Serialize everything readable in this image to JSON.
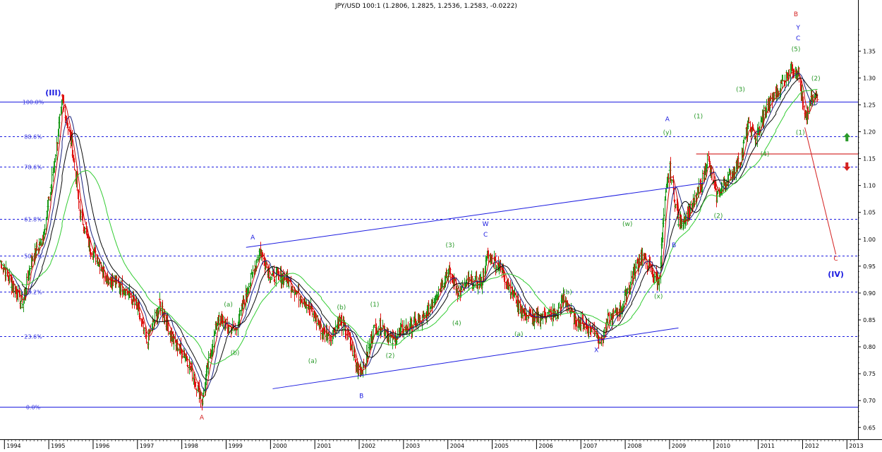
{
  "chart_data": {
    "type": "line",
    "subtype": "ohlc-bars-with-moving-averages",
    "title": "JPY/USD 100:1 (1.2806, 1.2825, 1.2536, 1.2583, -0.0222)",
    "x_axis": {
      "years": [
        "1994",
        "1995",
        "1996",
        "1997",
        "1998",
        "1999",
        "2000",
        "2001",
        "2002",
        "2003",
        "2004",
        "2005",
        "2006",
        "2007",
        "2008",
        "2009",
        "2010",
        "2011",
        "2012",
        "2013"
      ],
      "range": [
        1993.9,
        2013.25
      ]
    },
    "y_axis": {
      "position": "right",
      "ticks": [
        "0.65",
        "0.70",
        "0.75",
        "0.80",
        "0.85",
        "0.90",
        "0.95",
        "1.00",
        "1.05",
        "1.10",
        "1.15",
        "1.20",
        "1.25",
        "1.30",
        "1.35"
      ],
      "range": [
        0.628,
        1.445
      ]
    },
    "fib_levels": [
      {
        "label": "100.0%",
        "value": 1.2565,
        "style": "solid"
      },
      {
        "label": "88.6%",
        "value": 1.1918,
        "style": "dashed"
      },
      {
        "label": "78.6%",
        "value": 1.1348,
        "style": "dashed"
      },
      {
        "label": "61.8%",
        "value": 1.0378,
        "style": "dashed"
      },
      {
        "label": "50.0%",
        "value": 0.97,
        "style": "dashed"
      },
      {
        "label": "38.2%",
        "value": 0.903,
        "style": "dashed"
      },
      {
        "label": "23.6%",
        "value": 0.82,
        "style": "dashed"
      },
      {
        "label": "0.0%",
        "value": 0.6885,
        "style": "solid"
      }
    ],
    "horizontal_red_line": {
      "x": [
        2009.6,
        2013.25
      ],
      "y": 1.1587
    },
    "channel_lines": [
      {
        "from": [
          1999.45,
          0.985
        ],
        "to": [
          2009.8,
          1.105
        ]
      },
      {
        "from": [
          2000.05,
          0.722
        ],
        "to": [
          2009.2,
          0.835
        ]
      }
    ],
    "projection_line": {
      "from": [
        2012.05,
        1.208
      ],
      "to": [
        2012.75,
        0.972
      ]
    },
    "price_anchors": [
      [
        1993.9,
        0.96
      ],
      [
        1994.15,
        0.92
      ],
      [
        1994.4,
        0.88
      ],
      [
        1994.6,
        0.96
      ],
      [
        1994.85,
        1.0
      ],
      [
        1995.05,
        1.1
      ],
      [
        1995.3,
        1.26
      ],
      [
        1995.5,
        1.18
      ],
      [
        1995.7,
        1.05
      ],
      [
        1995.9,
        0.99
      ],
      [
        1996.3,
        0.93
      ],
      [
        1996.7,
        0.91
      ],
      [
        1997.0,
        0.87
      ],
      [
        1997.2,
        0.81
      ],
      [
        1997.5,
        0.88
      ],
      [
        1997.8,
        0.81
      ],
      [
        1998.1,
        0.78
      ],
      [
        1998.45,
        0.7
      ],
      [
        1998.6,
        0.77
      ],
      [
        1998.8,
        0.85
      ],
      [
        1999.0,
        0.84
      ],
      [
        1999.2,
        0.83
      ],
      [
        1999.45,
        0.9
      ],
      [
        1999.75,
        0.98
      ],
      [
        2000.0,
        0.93
      ],
      [
        2000.3,
        0.93
      ],
      [
        2000.6,
        0.9
      ],
      [
        2000.9,
        0.87
      ],
      [
        2001.15,
        0.83
      ],
      [
        2001.35,
        0.82
      ],
      [
        2001.55,
        0.85
      ],
      [
        2001.75,
        0.82
      ],
      [
        2001.95,
        0.76
      ],
      [
        2002.1,
        0.76
      ],
      [
        2002.3,
        0.83
      ],
      [
        2002.5,
        0.84
      ],
      [
        2002.75,
        0.81
      ],
      [
        2002.95,
        0.83
      ],
      [
        2003.2,
        0.84
      ],
      [
        2003.45,
        0.85
      ],
      [
        2003.75,
        0.9
      ],
      [
        2004.0,
        0.94
      ],
      [
        2004.25,
        0.9
      ],
      [
        2004.45,
        0.92
      ],
      [
        2004.75,
        0.92
      ],
      [
        2004.9,
        0.97
      ],
      [
        2005.15,
        0.95
      ],
      [
        2005.45,
        0.9
      ],
      [
        2005.7,
        0.86
      ],
      [
        2005.95,
        0.85
      ],
      [
        2006.2,
        0.86
      ],
      [
        2006.45,
        0.86
      ],
      [
        2006.6,
        0.89
      ],
      [
        2006.85,
        0.85
      ],
      [
        2007.1,
        0.84
      ],
      [
        2007.3,
        0.83
      ],
      [
        2007.45,
        0.81
      ],
      [
        2007.6,
        0.85
      ],
      [
        2007.9,
        0.87
      ],
      [
        2008.15,
        0.93
      ],
      [
        2008.35,
        0.97
      ],
      [
        2008.6,
        0.94
      ],
      [
        2008.75,
        0.92
      ],
      [
        2008.9,
        1.08
      ],
      [
        2009.0,
        1.13
      ],
      [
        2009.2,
        1.03
      ],
      [
        2009.45,
        1.05
      ],
      [
        2009.7,
        1.1
      ],
      [
        2009.85,
        1.15
      ],
      [
        2010.05,
        1.08
      ],
      [
        2010.3,
        1.11
      ],
      [
        2010.6,
        1.15
      ],
      [
        2010.75,
        1.21
      ],
      [
        2010.95,
        1.19
      ],
      [
        2011.15,
        1.24
      ],
      [
        2011.4,
        1.27
      ],
      [
        2011.6,
        1.3
      ],
      [
        2011.75,
        1.32
      ],
      [
        2011.9,
        1.31
      ],
      [
        2012.05,
        1.22
      ],
      [
        2012.2,
        1.26
      ],
      [
        2012.35,
        1.27
      ]
    ],
    "moving_averages": [
      {
        "color": "#cc0000",
        "period": 8
      },
      {
        "color": "#1a237e",
        "period": 16
      },
      {
        "color": "#0a0a0a",
        "period": 28
      },
      {
        "color": "#33cc33",
        "period": 55
      }
    ],
    "wave_labels": [
      {
        "text": "(III)",
        "x": 1995.1,
        "y": 1.268,
        "color": "#1c1ce0",
        "bold": true
      },
      {
        "text": "A",
        "x": 1998.45,
        "y": 0.665,
        "color": "#d42020",
        "bold": false
      },
      {
        "text": "A",
        "x": 1999.6,
        "y": 1.0,
        "color": "#1c1ce0",
        "bold": false
      },
      {
        "text": "(a)",
        "x": 1999.05,
        "y": 0.875,
        "color": "#2a9a2a",
        "bold": false
      },
      {
        "text": "(b)",
        "x": 1999.2,
        "y": 0.785,
        "color": "#2a9a2a",
        "bold": false
      },
      {
        "text": "(a)",
        "x": 2000.95,
        "y": 0.77,
        "color": "#2a9a2a",
        "bold": false
      },
      {
        "text": "(b)",
        "x": 2001.6,
        "y": 0.87,
        "color": "#2a9a2a",
        "bold": false
      },
      {
        "text": "B",
        "x": 2002.05,
        "y": 0.705,
        "color": "#1c1ce0",
        "bold": false
      },
      {
        "text": "(1)",
        "x": 2002.35,
        "y": 0.875,
        "color": "#2a9a2a",
        "bold": false
      },
      {
        "text": "(2)",
        "x": 2002.7,
        "y": 0.78,
        "color": "#2a9a2a",
        "bold": false
      },
      {
        "text": "(3)",
        "x": 2004.05,
        "y": 0.985,
        "color": "#2a9a2a",
        "bold": false
      },
      {
        "text": "(4)",
        "x": 2004.2,
        "y": 0.84,
        "color": "#2a9a2a",
        "bold": false
      },
      {
        "text": "W",
        "x": 2004.85,
        "y": 1.025,
        "color": "#1c1ce0",
        "bold": false
      },
      {
        "text": "C",
        "x": 2004.85,
        "y": 1.005,
        "color": "#1c1ce0",
        "bold": false
      },
      {
        "text": "(b)",
        "x": 2006.7,
        "y": 0.898,
        "color": "#2a9a2a",
        "bold": false
      },
      {
        "text": "(a)",
        "x": 2005.6,
        "y": 0.82,
        "color": "#2a9a2a",
        "bold": false
      },
      {
        "text": "X",
        "x": 2007.35,
        "y": 0.79,
        "color": "#1c1ce0",
        "bold": false
      },
      {
        "text": "(w)",
        "x": 2008.05,
        "y": 1.025,
        "color": "#2a9a2a",
        "bold": false
      },
      {
        "text": "(x)",
        "x": 2008.75,
        "y": 0.89,
        "color": "#2a9a2a",
        "bold": false
      },
      {
        "text": "A",
        "x": 2008.95,
        "y": 1.22,
        "color": "#1c1ce0",
        "bold": false
      },
      {
        "text": "(y)",
        "x": 2008.95,
        "y": 1.195,
        "color": "#2a9a2a",
        "bold": false
      },
      {
        "text": "B",
        "x": 2009.1,
        "y": 0.985,
        "color": "#1c1ce0",
        "bold": false
      },
      {
        "text": "(1)",
        "x": 2009.65,
        "y": 1.225,
        "color": "#2a9a2a",
        "bold": false
      },
      {
        "text": "(2)",
        "x": 2010.1,
        "y": 1.04,
        "color": "#2a9a2a",
        "bold": false
      },
      {
        "text": "(3)",
        "x": 2010.6,
        "y": 1.275,
        "color": "#2a9a2a",
        "bold": false
      },
      {
        "text": "(4)",
        "x": 2011.15,
        "y": 1.155,
        "color": "#2a9a2a",
        "bold": false
      },
      {
        "text": "(5)",
        "x": 2011.85,
        "y": 1.35,
        "color": "#2a9a2a",
        "bold": false
      },
      {
        "text": "C",
        "x": 2011.9,
        "y": 1.37,
        "color": "#1c1ce0",
        "bold": false
      },
      {
        "text": "Y",
        "x": 2011.9,
        "y": 1.39,
        "color": "#1c1ce0",
        "bold": false
      },
      {
        "text": "B",
        "x": 2011.85,
        "y": 1.415,
        "color": "#d42020",
        "bold": false
      },
      {
        "text": "(1)",
        "x": 2011.95,
        "y": 1.195,
        "color": "#2a9a2a",
        "bold": false
      },
      {
        "text": "(2)",
        "x": 2012.3,
        "y": 1.295,
        "color": "#2a9a2a",
        "bold": false
      },
      {
        "text": "C",
        "x": 2012.75,
        "y": 0.96,
        "color": "#d42020",
        "bold": false
      },
      {
        "text": "(IV)",
        "x": 2012.75,
        "y": 0.93,
        "color": "#1c1ce0",
        "bold": true
      }
    ],
    "arrows": [
      {
        "direction": "up",
        "color": "#2a9a2a",
        "x": 2013.0,
        "y": 1.19
      },
      {
        "direction": "down",
        "color": "#d42020",
        "x": 2013.0,
        "y": 1.135
      }
    ],
    "colors": {
      "up_bar": "#1a9a1a",
      "down_bar": "#e01010",
      "fib_line": "#1c1ce0",
      "fib_label": "#3a3ae0",
      "frame": "#000000"
    },
    "grid": false,
    "legend": "none"
  }
}
